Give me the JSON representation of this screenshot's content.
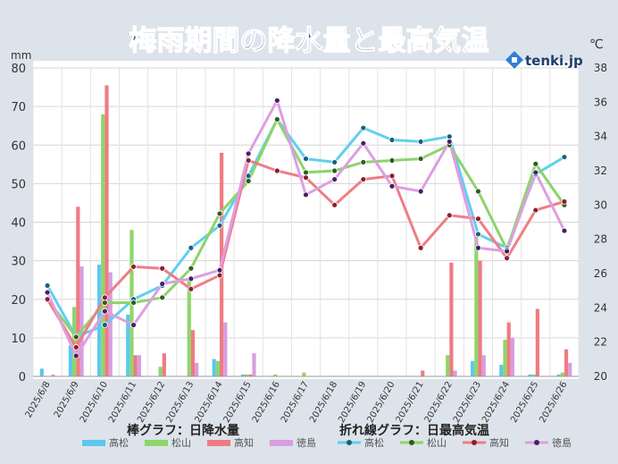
{
  "header": {
    "title": "梅雨期間の降水量と最高気温",
    "brand": "tenki.jp"
  },
  "chart_data": {
    "type": "bar+line",
    "title": "梅雨期間の降水量と最高気温",
    "left_unit": "mm",
    "right_unit": "℃",
    "left_ylim": [
      0,
      80
    ],
    "left_ticks": [
      0,
      10,
      20,
      30,
      40,
      50,
      60,
      70,
      80
    ],
    "right_ylim": [
      20,
      38
    ],
    "right_ticks": [
      20,
      22,
      24,
      26,
      28,
      30,
      32,
      34,
      36,
      38
    ],
    "grid": true,
    "categories": [
      "2025/6/8",
      "2025/6/9",
      "2025/6/10",
      "2025/6/11",
      "2025/6/12",
      "2025/6/13",
      "2025/6/14",
      "2025/6/15",
      "2025/6/16",
      "2025/6/17",
      "2025/6/18",
      "2025/6/19",
      "2025/6/20",
      "2025/6/21",
      "2025/6/22",
      "2025/6/23",
      "2025/6/24",
      "2025/6/25",
      "2025/6/26"
    ],
    "bar_series_label": "棒グラフ：日降水量",
    "line_series_label": "折れ線グラフ：日最高気温",
    "bar_series": [
      {
        "name": "高松",
        "color": "#5cc8ec",
        "values": [
          2,
          8,
          29,
          16,
          0,
          0,
          4.5,
          0.5,
          0,
          0,
          0,
          0,
          0,
          0,
          0,
          4,
          3,
          0.5,
          0.5
        ]
      },
      {
        "name": "松山",
        "color": "#8ed66a",
        "values": [
          0,
          18,
          68,
          38,
          2.5,
          25,
          4,
          0.5,
          0.5,
          1,
          0,
          0,
          0,
          0,
          5.5,
          37,
          9.5,
          0.5,
          1
        ]
      },
      {
        "name": "高知",
        "color": "#ef7b82",
        "values": [
          0,
          44,
          75.5,
          5.5,
          6,
          12,
          58,
          0.5,
          0,
          0,
          0,
          0,
          0,
          1.5,
          29.5,
          30,
          14,
          17.5,
          7
        ]
      },
      {
        "name": "徳島",
        "color": "#d79ee0",
        "values": [
          0.5,
          28.5,
          27,
          5.5,
          0,
          3.5,
          14,
          6,
          0,
          0,
          0,
          0,
          0,
          0,
          1.5,
          5.5,
          10,
          0,
          3.5
        ]
      }
    ],
    "line_series": [
      {
        "name": "高松",
        "color": "#5fd0ee",
        "values": [
          25.3,
          22.3,
          23.0,
          24.5,
          25.3,
          27.5,
          28.8,
          31.7,
          35.0,
          32.7,
          32.5,
          34.5,
          33.8,
          33.7,
          34.0,
          28.3,
          27.5,
          31.8,
          32.8
        ]
      },
      {
        "name": "松山",
        "color": "#8cd46a",
        "values": [
          24.5,
          22.3,
          24.3,
          24.3,
          24.6,
          26.3,
          29.5,
          31.4,
          35.0,
          31.9,
          32.0,
          32.5,
          32.6,
          32.7,
          33.5,
          30.8,
          27.4,
          32.4,
          30.0
        ]
      },
      {
        "name": "高知",
        "color": "#ef7d85",
        "values": [
          24.5,
          21.7,
          24.6,
          26.4,
          26.3,
          25.1,
          25.9,
          32.6,
          32.0,
          31.6,
          30.0,
          31.5,
          31.7,
          27.5,
          29.4,
          29.2,
          26.9,
          29.7,
          30.2
        ]
      },
      {
        "name": "徳島",
        "color": "#de9ee2",
        "values": [
          24.9,
          21.2,
          23.8,
          23.0,
          25.4,
          25.7,
          26.2,
          33.0,
          36.1,
          30.6,
          31.5,
          33.6,
          31.1,
          30.8,
          33.7,
          27.5,
          27.3,
          31.9,
          28.5
        ]
      }
    ],
    "line_marker_colors": [
      "#1d5f7a",
      "#2f5d21",
      "#8a2032",
      "#46206a"
    ]
  }
}
